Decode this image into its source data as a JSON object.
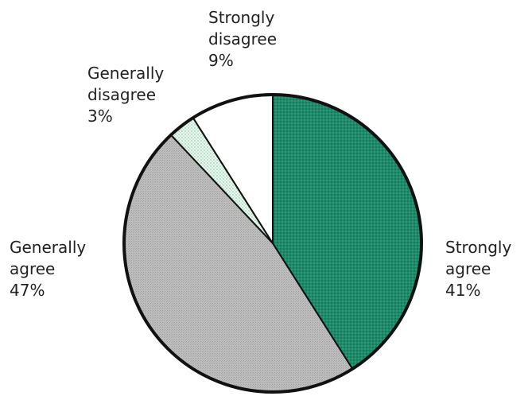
{
  "chart_data": {
    "type": "pie",
    "start_angle_deg": 0,
    "direction": "clockwise",
    "slices": [
      {
        "label": "Strongly agree",
        "label_lines": [
          "Strongly",
          "agree"
        ],
        "value": 41,
        "value_label": "41%",
        "color": "#1f8a6a",
        "pattern": "dots-dark"
      },
      {
        "label": "Generally agree",
        "label_lines": [
          "Generally",
          "agree"
        ],
        "value": 47,
        "value_label": "47%",
        "color": "#b9b9b9",
        "pattern": "grey-stipple"
      },
      {
        "label": "Generally disagree",
        "label_lines": [
          "Generally",
          "disagree"
        ],
        "value": 3,
        "value_label": "3%",
        "color": "#d6eedd",
        "pattern": "dots-light"
      },
      {
        "label": "Strongly disagree",
        "label_lines": [
          "Strongly",
          "disagree"
        ],
        "value": 9,
        "value_label": "9%",
        "color": "#ffffff",
        "pattern": "none"
      }
    ]
  }
}
